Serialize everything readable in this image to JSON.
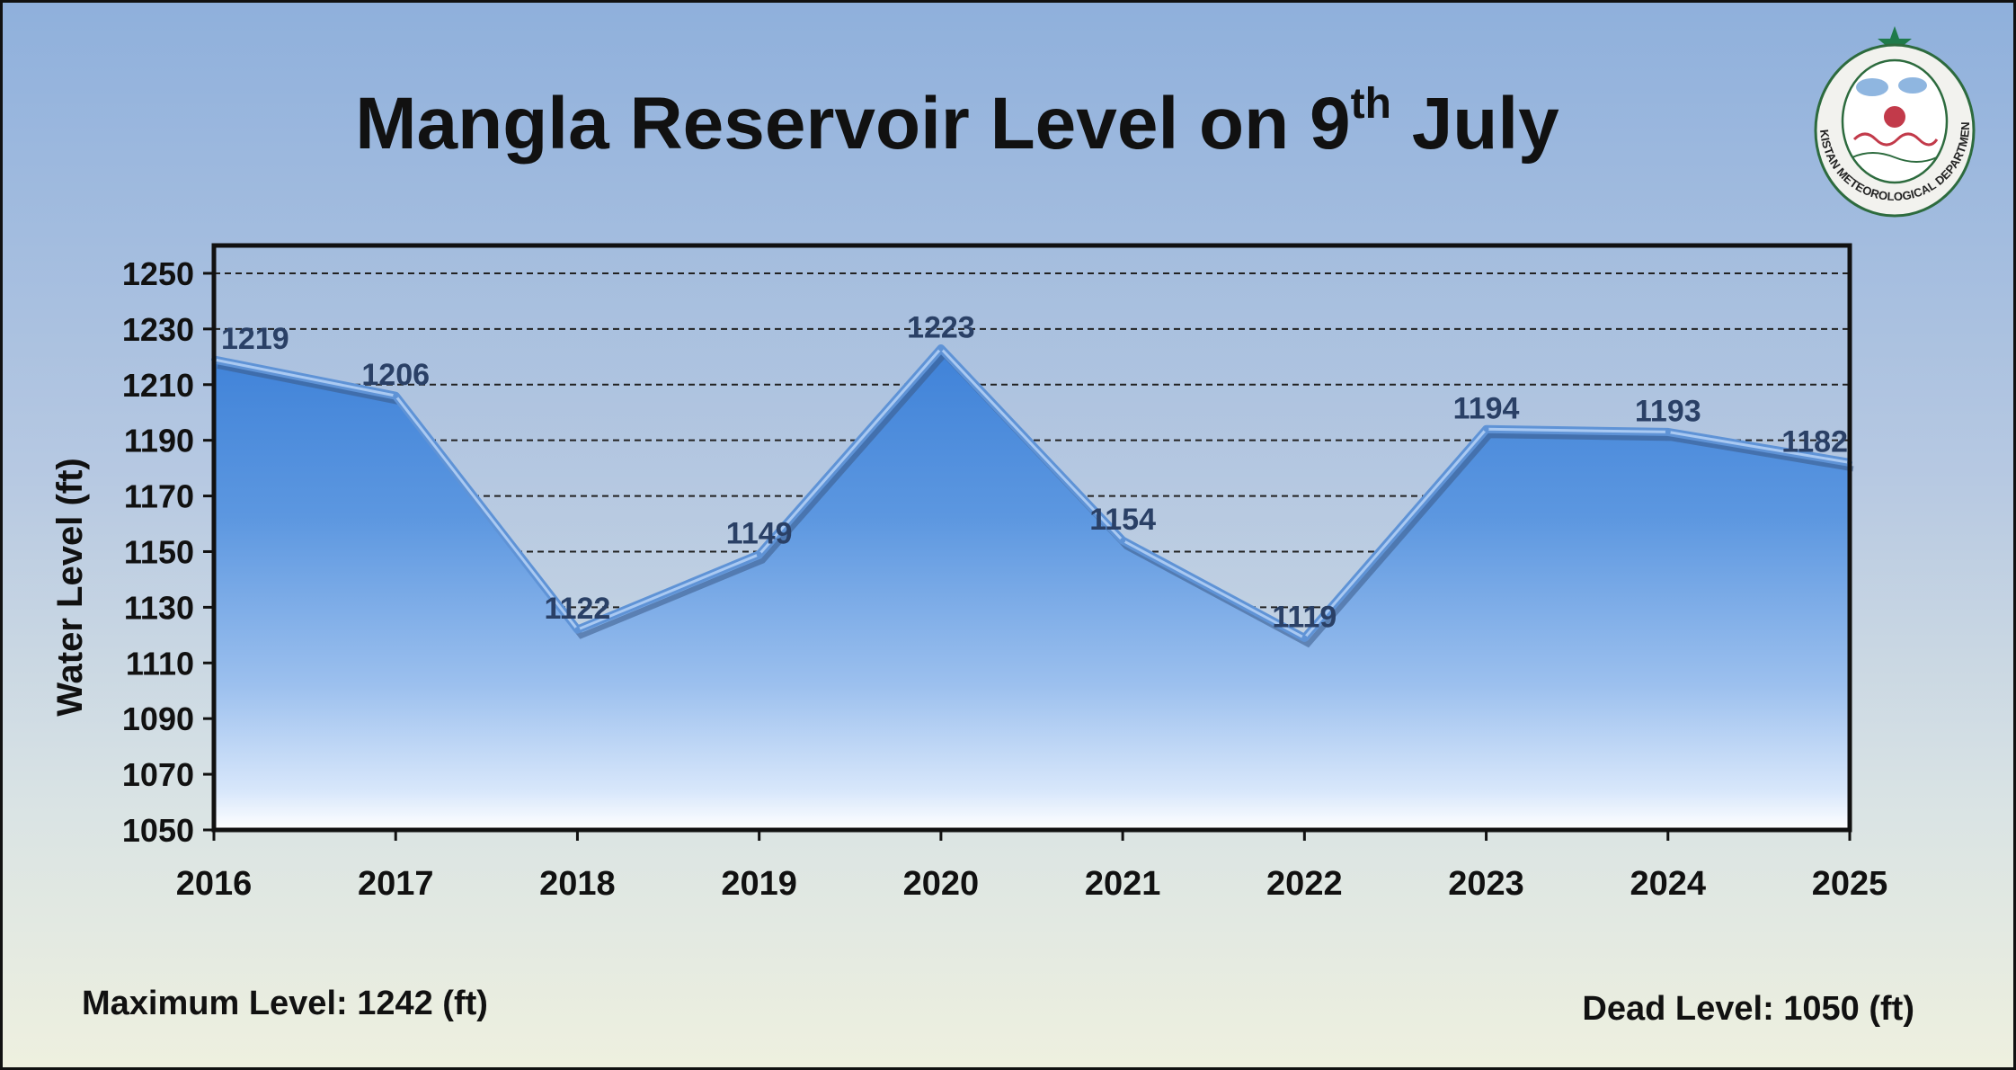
{
  "chart_data": {
    "type": "area",
    "title": "Mangla Reservoir Level on 9th July",
    "title_main": "Mangla Reservoir Level on 9",
    "title_sup": "th",
    "title_end": " July",
    "ylabel": "Water Level (ft)",
    "xlabel": "",
    "x": [
      "2016",
      "2017",
      "2018",
      "2019",
      "2020",
      "2021",
      "2022",
      "2023",
      "2024",
      "2025"
    ],
    "values": [
      1219,
      1206,
      1122,
      1149,
      1223,
      1154,
      1119,
      1194,
      1193,
      1182
    ],
    "ylim": [
      1050,
      1250
    ],
    "yticks": [
      1050,
      1070,
      1090,
      1110,
      1130,
      1150,
      1170,
      1190,
      1210,
      1230,
      1250
    ],
    "grid": "horizontal dashed",
    "legend": "none"
  },
  "notes": {
    "max_level": "Maximum Level: 1242 (ft)",
    "dead_level": "Dead Level: 1050 (ft)"
  },
  "logo": {
    "text": "PAKISTAN METEOROLOGICAL DEPARTMENT",
    "icon": "pmd-emblem-icon"
  },
  "colors": {
    "area_top": "#5c97e0",
    "area_bottom": "#ffffff",
    "line": "#5f93d6",
    "data_label": "#2a4066",
    "grid": "#222222",
    "logo_star": "#1f7a4a"
  }
}
